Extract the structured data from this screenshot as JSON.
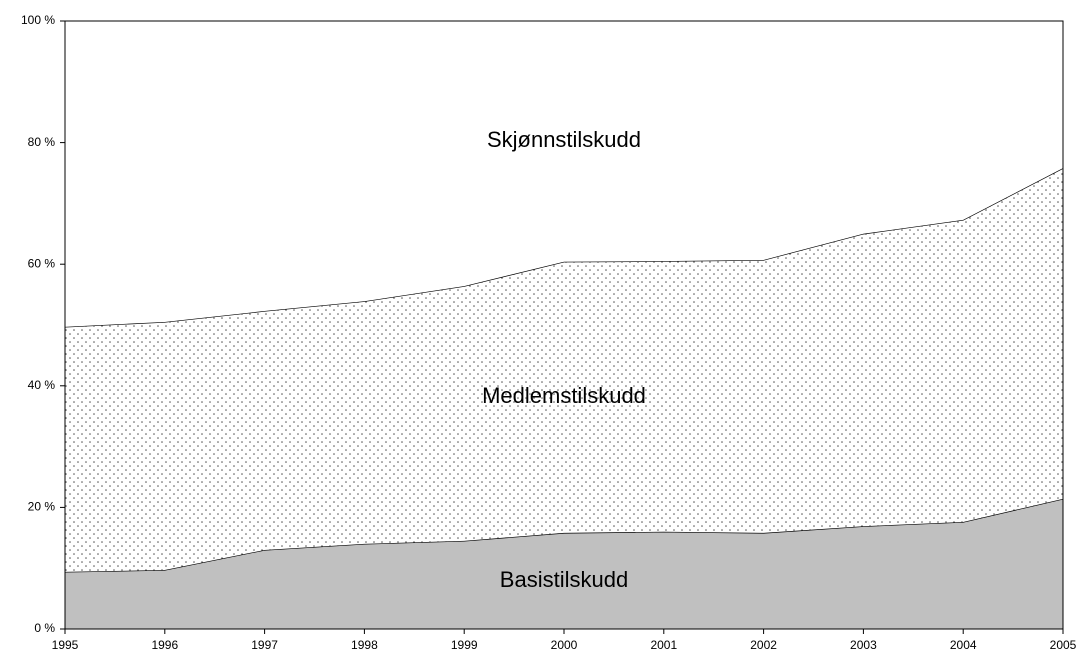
{
  "chart_data": {
    "type": "stacked-area",
    "x": [
      1995,
      1996,
      1997,
      1998,
      1999,
      2000,
      2001,
      2002,
      2003,
      2004,
      2005
    ],
    "xlim": [
      1995,
      2005
    ],
    "xticks": [
      1995,
      1996,
      1997,
      1998,
      1999,
      2000,
      2001,
      2002,
      2003,
      2004,
      2005
    ],
    "ylim": [
      0,
      100
    ],
    "yticks": [
      {
        "value": 0,
        "label": "0 %"
      },
      {
        "value": 20,
        "label": "20 %"
      },
      {
        "value": 40,
        "label": "40 %"
      },
      {
        "value": 60,
        "label": "60 %"
      },
      {
        "value": 80,
        "label": "80 %"
      },
      {
        "value": 100,
        "label": "100 %"
      }
    ],
    "grid": false,
    "series": [
      {
        "name": "Basistilskudd",
        "color": "#c0c0c0",
        "values": [
          9.4,
          9.7,
          13.0,
          14.0,
          14.5,
          15.8,
          16.0,
          15.8,
          16.9,
          17.6,
          21.4
        ]
      },
      {
        "name": "Medlemstilskudd",
        "color": "#ffffff",
        "pattern": "dots",
        "values": [
          40.3,
          40.8,
          39.3,
          39.9,
          41.9,
          44.6,
          44.5,
          44.9,
          48.1,
          49.7,
          54.4
        ]
      },
      {
        "name": "Skjønnstilskudd",
        "color": "#ffffff",
        "values": [
          50.3,
          49.5,
          47.7,
          46.1,
          43.6,
          39.6,
          39.5,
          39.3,
          35.0,
          32.7,
          24.2
        ]
      }
    ]
  }
}
